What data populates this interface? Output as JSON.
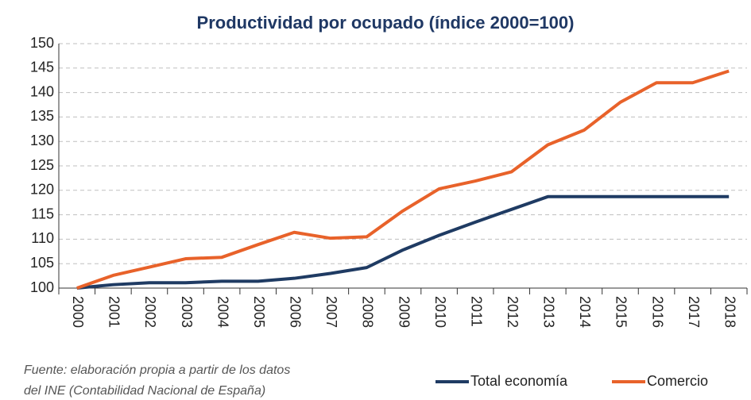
{
  "chart_data": {
    "type": "line",
    "title": "Productividad por ocupado (índice 2000=100)",
    "categories": [
      "2000",
      "2001",
      "2002",
      "2003",
      "2004",
      "2005",
      "2006",
      "2007",
      "2008",
      "2009",
      "2010",
      "2011",
      "2012",
      "2013",
      "2014",
      "2015",
      "2016",
      "2017",
      "2018"
    ],
    "series": [
      {
        "name": "Total economía",
        "color": "#1f3b63",
        "values": [
          100,
          100.7,
          101.1,
          101.1,
          101.4,
          101.4,
          102.0,
          103.0,
          104.2,
          107.8,
          110.8,
          113.5,
          116.1,
          118.7,
          118.7,
          118.7,
          118.7,
          118.7,
          118.7
        ]
      },
      {
        "name": "Comercio",
        "color": "#e8622a",
        "values": [
          100,
          102.6,
          104.3,
          106.0,
          106.3,
          108.9,
          111.4,
          110.2,
          110.5,
          115.8,
          120.3,
          121.9,
          123.8,
          129.3,
          132.3,
          138.0,
          142.0,
          142.0,
          144.4
        ]
      }
    ],
    "ylim": [
      100,
      150
    ],
    "yticks": [
      100,
      105,
      110,
      115,
      120,
      125,
      130,
      135,
      140,
      145,
      150
    ],
    "grid": true,
    "legend": "bottom-right",
    "source": [
      "Fuente: elaboración propia a partir de los datos",
      "del INE (Contabilidad Nacional de España)"
    ]
  }
}
